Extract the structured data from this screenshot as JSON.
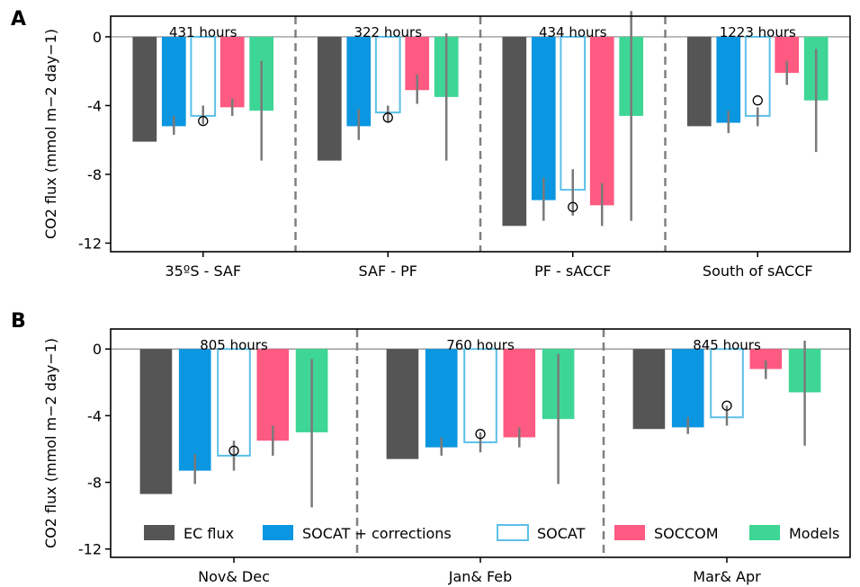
{
  "colors": {
    "ec": "#555555",
    "socat_corr": "#0a96e0",
    "socat": "#5bc0e8",
    "soccom": "#ff5a82",
    "models": "#3ed696",
    "errorbar": "#7a7a7a",
    "divider": "#808080"
  },
  "legend": [
    {
      "key": "ec",
      "label": "EC flux"
    },
    {
      "key": "socat_corr",
      "label": "SOCAT + corrections"
    },
    {
      "key": "socat",
      "label": "SOCAT"
    },
    {
      "key": "soccom",
      "label": "SOCCOM"
    },
    {
      "key": "models",
      "label": "Models"
    }
  ],
  "chart_data": [
    {
      "type": "bar",
      "panel": "A",
      "ylabel": "CO2 flux (mmol m−2 day−1)",
      "ylim": [
        -12.5,
        1.2
      ],
      "yticks": [
        0,
        -4,
        -8,
        -12
      ],
      "ytick_labels": [
        "0",
        "-4",
        "-8",
        "-12"
      ],
      "categories": [
        "35ºS - SAF",
        "SAF - PF",
        "PF - sACCF",
        "South of sACCF"
      ],
      "hours": [
        "431 hours",
        "322 hours",
        "434 hours",
        "1223 hours"
      ],
      "series": [
        {
          "key": "ec",
          "name": "EC flux",
          "values": [
            -6.1,
            -7.2,
            -11.0,
            -5.2
          ],
          "err_low": [
            -6.1,
            -7.2,
            -11.0,
            -5.2
          ],
          "err_high": [
            -6.1,
            -7.2,
            -11.0,
            -5.2
          ]
        },
        {
          "key": "socat_corr",
          "name": "SOCAT + corrections",
          "values": [
            -5.2,
            -5.2,
            -9.5,
            -5.0
          ],
          "err_low": [
            -5.7,
            -6.0,
            -10.7,
            -5.6
          ],
          "err_high": [
            -4.6,
            -4.2,
            -8.2,
            -4.3
          ]
        },
        {
          "key": "socat",
          "name": "SOCAT",
          "values": [
            -4.6,
            -4.4,
            -8.9,
            -4.6
          ],
          "err_low": [
            -5.1,
            -5.0,
            -10.4,
            -5.2
          ],
          "err_high": [
            -4.0,
            -4.0,
            -7.7,
            -4.1
          ],
          "marker": [
            -4.9,
            -4.7,
            -9.9,
            -3.7
          ]
        },
        {
          "key": "soccom",
          "name": "SOCCOM",
          "values": [
            -4.1,
            -3.1,
            -9.8,
            -2.1
          ],
          "err_low": [
            -4.6,
            -3.9,
            -11.0,
            -2.8
          ],
          "err_high": [
            -3.6,
            -2.2,
            -8.5,
            -1.4
          ]
        },
        {
          "key": "models",
          "name": "Models",
          "values": [
            -4.3,
            -3.5,
            -4.6,
            -3.7
          ],
          "err_low": [
            -7.2,
            -7.2,
            -10.7,
            -6.7
          ],
          "err_high": [
            -1.4,
            0.2,
            1.5,
            -0.7
          ]
        }
      ]
    },
    {
      "type": "bar",
      "panel": "B",
      "ylabel": "CO2 flux (mmol m−2 day−1)",
      "ylim": [
        -12.5,
        1.2
      ],
      "yticks": [
        0,
        -4,
        -8,
        -12
      ],
      "ytick_labels": [
        "0",
        "-4",
        "-8",
        "-12"
      ],
      "categories": [
        "Nov& Dec",
        "Jan& Feb",
        "Mar& Apr"
      ],
      "hours": [
        "805 hours",
        "760 hours",
        "845 hours"
      ],
      "series": [
        {
          "key": "ec",
          "name": "EC flux",
          "values": [
            -8.7,
            -6.6,
            -4.8
          ],
          "err_low": [
            -8.7,
            -6.6,
            -4.8
          ],
          "err_high": [
            -8.7,
            -6.6,
            -4.8
          ]
        },
        {
          "key": "socat_corr",
          "name": "SOCAT + corrections",
          "values": [
            -7.3,
            -5.9,
            -4.7
          ],
          "err_low": [
            -8.1,
            -6.4,
            -5.1
          ],
          "err_high": [
            -6.3,
            -5.3,
            -4.1
          ]
        },
        {
          "key": "socat",
          "name": "SOCAT",
          "values": [
            -6.4,
            -5.6,
            -4.1
          ],
          "err_low": [
            -7.3,
            -6.2,
            -4.6
          ],
          "err_high": [
            -5.5,
            -5.0,
            -3.4
          ],
          "marker": [
            -6.1,
            -5.1,
            -3.4
          ]
        },
        {
          "key": "soccom",
          "name": "SOCCOM",
          "values": [
            -5.5,
            -5.3,
            -1.2
          ],
          "err_low": [
            -6.4,
            -5.9,
            -1.8
          ],
          "err_high": [
            -4.6,
            -4.7,
            -0.7
          ]
        },
        {
          "key": "models",
          "name": "Models",
          "values": [
            -5.0,
            -4.2,
            -2.6
          ],
          "err_low": [
            -9.5,
            -8.1,
            -5.8
          ],
          "err_high": [
            -0.6,
            -0.3,
            0.5
          ]
        }
      ]
    }
  ]
}
